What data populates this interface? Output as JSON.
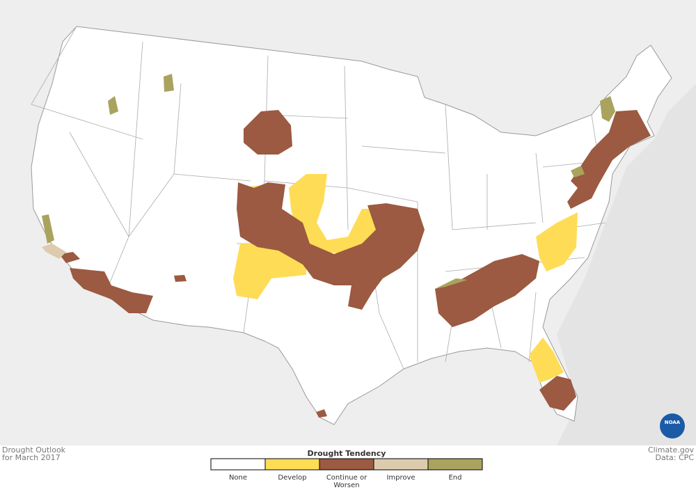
{
  "footer": {
    "title_lines": [
      "Drought Outlook",
      "for March 2017"
    ],
    "credit_lines": [
      "Climate.gov",
      "Data: CPC"
    ]
  },
  "legend": {
    "title": "Drought Tendency",
    "items": [
      {
        "label": "None",
        "color": "#ffffff"
      },
      {
        "label": "Develop",
        "color": "#fedc56"
      },
      {
        "label": "Continue or Worsen",
        "color": "#9b5a41"
      },
      {
        "label": "Improve",
        "color": "#dccbad"
      },
      {
        "label": "End",
        "color": "#a9a35d"
      }
    ]
  },
  "logo": "NOAA"
}
